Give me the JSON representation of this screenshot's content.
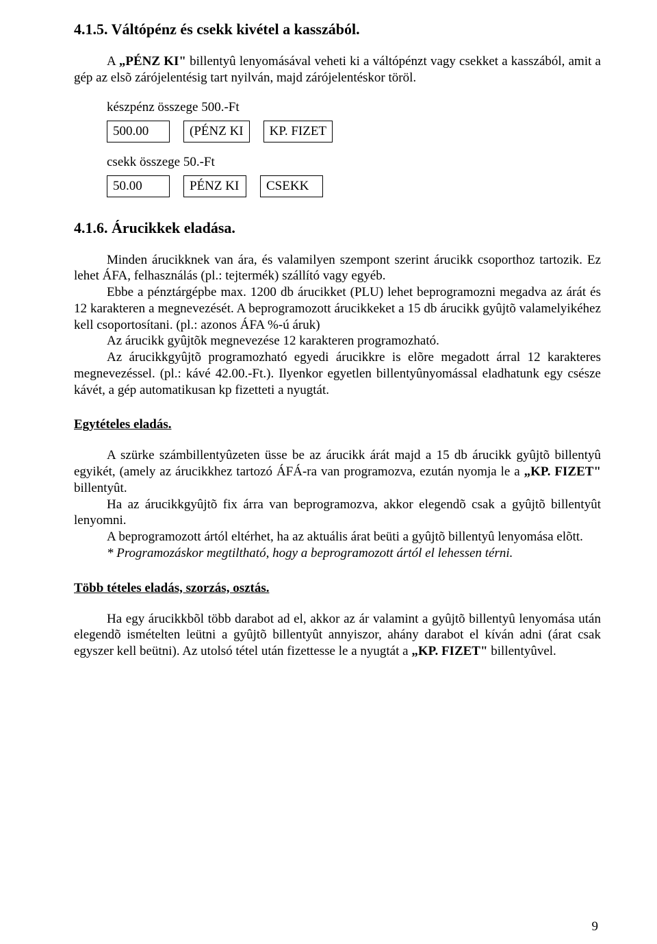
{
  "section1": {
    "heading": "4.1.5. Váltópénz és csekk kivétel a kasszából.",
    "p1_part1": "A ",
    "p1_bold": "„PÉNZ KI\"",
    "p1_part2": " billentyû lenyomásával veheti ki a váltópénzt vagy csekket a kasszából, amit a gép az elsõ zárójelentésig tart nyilván, majd zárójelentéskor töröl.",
    "cash_label": "készpénz összege 500.-Ft",
    "row1": {
      "c1": "500.00",
      "c2": "(PÉNZ KI",
      "c3": "KP. FIZET"
    },
    "check_label": "csekk összege 50.-Ft",
    "row2": {
      "c1": "50.00",
      "c2": "PÉNZ KI",
      "c3": "CSEKK"
    }
  },
  "section2": {
    "heading": "4.1.6. Árucikkek eladása.",
    "p1": "Minden árucikknek van ára, és valamilyen szempont szerint árucikk csoporthoz tartozik. Ez lehet ÁFA, felhasználás (pl.: tejtermék) szállító vagy egyéb.",
    "p2_a": "Ebbe a pénztárgépbe max. 1200 db árucikket (PLU) lehet beprogramozni megadva az árát és 12 karakteren a megnevezését. A beprogramozott árucikkeket a 15 db árucikk gyûjtõ valamelyikéhez kell csoportosítani. (pl.: azonos ÁFA %-ú áruk)",
    "p3": "Az árucikk gyûjtõk megnevezése 12 karakteren programozható.",
    "p4": "Az árucikkgyûjtõ programozható egyedi árucikkre is elõre megadott árral 12 karakteres megnevezéssel. (pl.: kávé 42.00.-Ft.). Ilyenkor egyetlen billentyûnyomással eladhatunk egy csésze kávét, a gép automatikusan kp fizetteti a nyugtát."
  },
  "single": {
    "heading": "Egytételes eladás.",
    "p1_a": "A szürke számbillentyûzeten üsse be az árucikk árát majd a 15 db árucikk gyûjtõ billentyû egyikét, (amely az árucikkhez tartozó ÁFÁ-ra van programozva, ezután nyomja le a ",
    "p1_bold": "„KP. FIZET\"",
    "p1_b": " billentyût.",
    "p2": "Ha az árucikkgyûjtõ fix árra van beprogramozva, akkor elegendõ csak a gyûjtõ billentyût lenyomni.",
    "p3": "A beprogramozott ártól eltérhet, ha az aktuális árat beüti a gyûjtõ billentyû lenyomása elõtt.",
    "p4": "* Programozáskor megtiltható, hogy a beprogramozott ártól el lehessen térni."
  },
  "multi": {
    "heading": "Több tételes eladás, szorzás, osztás.",
    "p1_a": "Ha egy árucikkbõl több darabot ad el, akkor az ár valamint a gyûjtõ billentyû lenyomása után elegendõ ismételten leütni a gyûjtõ billentyût annyiszor, ahány darabot el kíván adni (árat csak egyszer kell beütni). Az utolsó tétel után fizettesse le a nyugtát a ",
    "p1_bold": "„KP. FIZET\"",
    "p1_b": " billentyûvel."
  },
  "pagenum": "9"
}
